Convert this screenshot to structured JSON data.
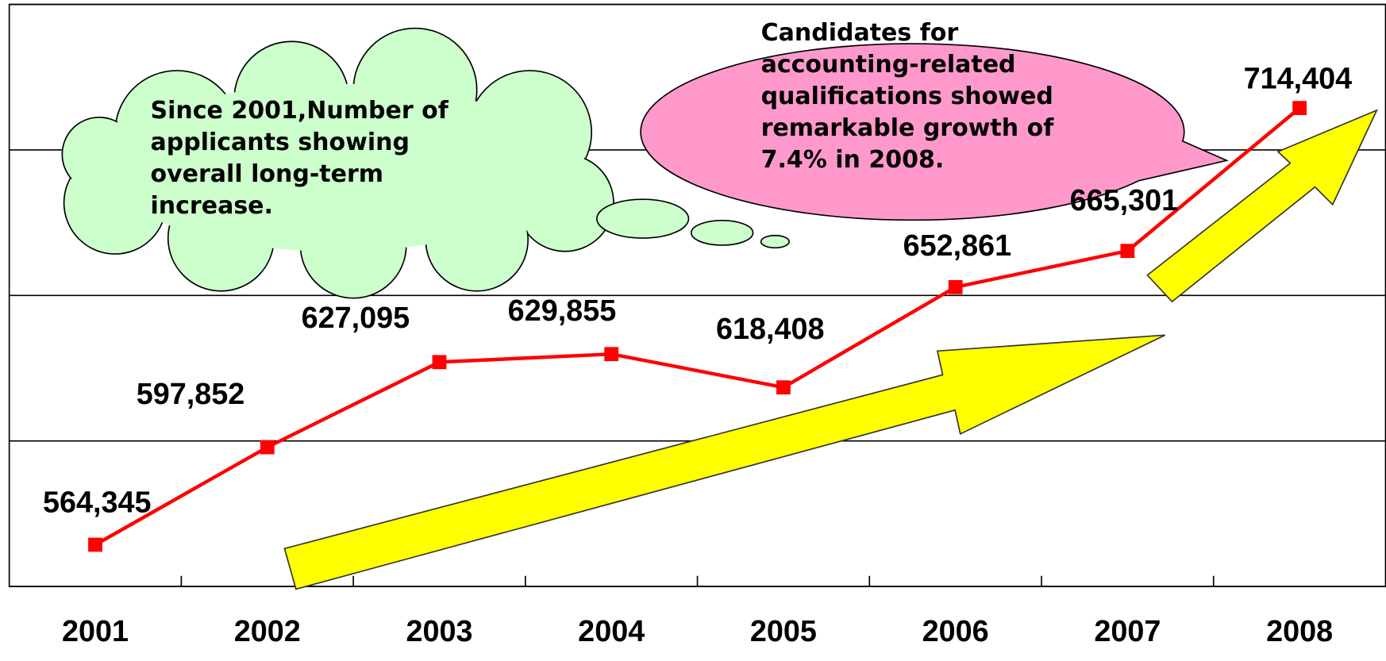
{
  "chart_data": {
    "type": "line",
    "categories": [
      "2001",
      "2002",
      "2003",
      "2004",
      "2005",
      "2006",
      "2007",
      "2008"
    ],
    "series": [
      {
        "color": "#ff0000",
        "values": [
          564345,
          597852,
          627095,
          629855,
          618408,
          652861,
          665301,
          714404
        ],
        "value_labels": [
          "564,345",
          "597,852",
          "627,095",
          "629,855",
          "618,408",
          "652,861",
          "665,301",
          "714,404"
        ]
      }
    ],
    "ylim": [
      550000,
      750000
    ],
    "yticks": [
      550000,
      600000,
      650000,
      700000,
      750000
    ],
    "grid": true,
    "annotations": [
      "Since 2001,Number of applicants showing overall long-term increase.",
      "Candidates for accounting-related qualifications showed remarkable growth of 7.4% in 2008."
    ]
  }
}
